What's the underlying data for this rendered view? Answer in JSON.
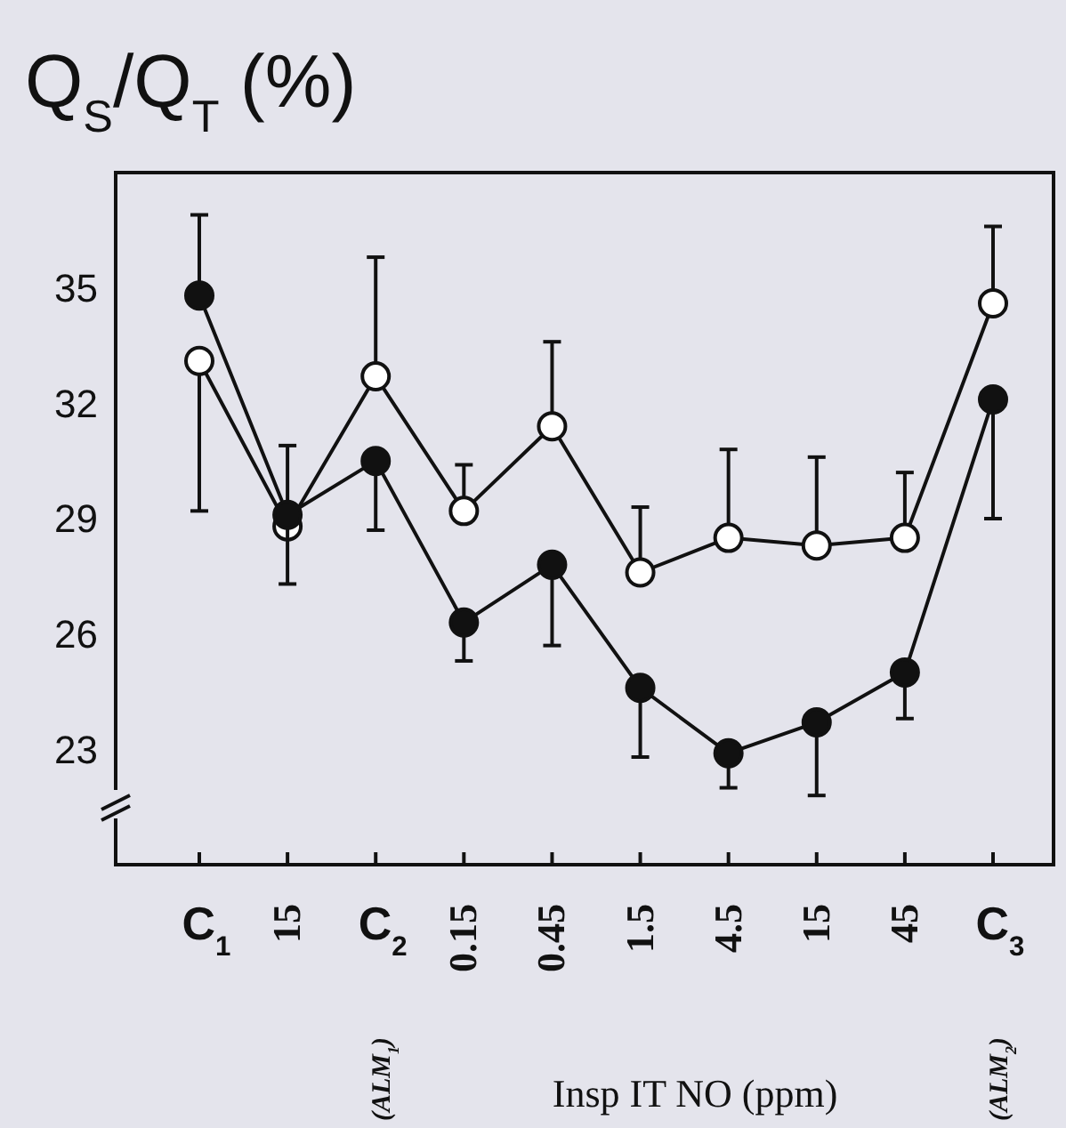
{
  "chart_data": {
    "type": "line",
    "title": "Q$_{S}$/Q$_{T}$ (%)",
    "xlabel": "Insp IT NO (ppm)",
    "categories": [
      "C$_{1}$",
      "15",
      "C$_{2}$",
      "0.15",
      "0.45",
      "1.5",
      "4.5",
      "15",
      "45",
      "C$_{3}$"
    ],
    "ylim": [
      20,
      38
    ],
    "yticks": [
      23,
      26,
      29,
      32,
      35
    ],
    "grid": false,
    "marker": "circle",
    "line_style": "solid",
    "series": [
      {
        "color": "#ffffff",
        "values": [
          33.1,
          28.8,
          32.7,
          29.2,
          31.4,
          27.6,
          28.5,
          28.3,
          28.5,
          34.6
        ],
        "errors": [
          [
            29.2,
            33.1
          ],
          [
            28.8,
            30.9
          ],
          [
            32.7,
            35.8
          ],
          [
            29.2,
            30.4
          ],
          [
            31.4,
            33.6
          ],
          [
            27.6,
            29.3
          ],
          [
            28.5,
            30.8
          ],
          [
            28.3,
            30.6
          ],
          [
            28.5,
            30.2
          ],
          [
            34.6,
            36.6
          ]
        ]
      },
      {
        "color": "#111111",
        "values": [
          34.8,
          29.1,
          30.5,
          26.3,
          27.8,
          24.6,
          22.9,
          23.7,
          25.0,
          32.1
        ],
        "errors": [
          [
            34.8,
            36.9
          ],
          [
            27.3,
            29.1
          ],
          [
            28.7,
            30.5
          ],
          [
            25.3,
            26.3
          ],
          [
            25.7,
            27.8
          ],
          [
            22.8,
            24.6
          ],
          [
            22.0,
            22.9
          ],
          [
            21.8,
            23.7
          ],
          [
            23.8,
            25.0
          ],
          [
            29.0,
            32.1
          ]
        ]
      }
    ],
    "annotations": [
      "(ALM$_{1}$)",
      "(ALM$_{2}$)"
    ]
  }
}
